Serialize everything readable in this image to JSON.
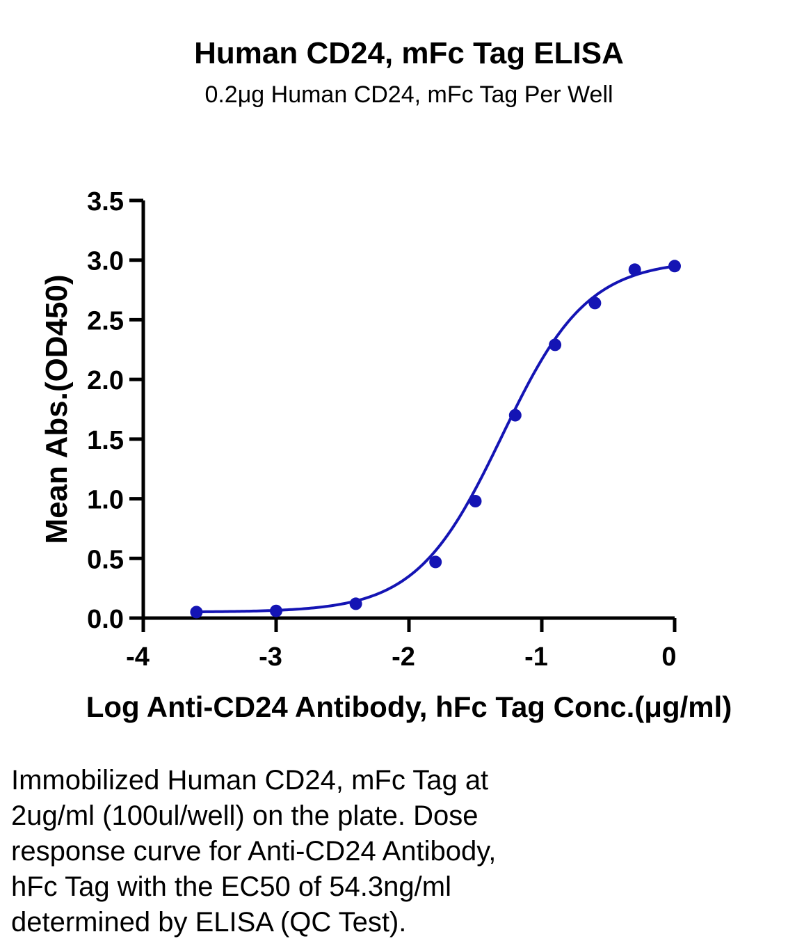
{
  "chart_data": {
    "type": "scatter",
    "title": "Human CD24, mFc Tag ELISA",
    "subtitle": "0.2μg Human CD24, mFc Tag Per Well",
    "xlabel": "Log Anti-CD24 Antibody, hFc Tag Conc.(μg/ml)",
    "ylabel": "Mean Abs.(OD450)",
    "xlim": [
      -4,
      0
    ],
    "ylim": [
      0,
      3.5
    ],
    "xticks": [
      -4,
      -3,
      -2,
      -1,
      0
    ],
    "xtick_labels": [
      "-4",
      "-3",
      "-2",
      "-1",
      "0"
    ],
    "yticks": [
      0,
      0.5,
      1.0,
      1.5,
      2.0,
      2.5,
      3.0,
      3.5
    ],
    "ytick_labels": [
      "0.0",
      "0.5",
      "1.0",
      "1.5",
      "2.0",
      "2.5",
      "3.0",
      "3.5"
    ],
    "grid": false,
    "series": [
      {
        "x": [
          -3.6,
          -3.0,
          -2.4,
          -1.8,
          -1.5,
          -1.2,
          -0.9,
          -0.6,
          -0.3,
          0.0
        ],
        "y": [
          0.05,
          0.06,
          0.12,
          0.47,
          0.98,
          1.7,
          2.29,
          2.64,
          2.92,
          2.95
        ],
        "color": "#1414b4",
        "fit": "four-parameter logistic",
        "fit_range": [
          -3.6,
          0.0
        ]
      }
    ]
  },
  "caption_lines": [
    "Immobilized Human CD24, mFc Tag at",
    "2ug/ml (100ul/well) on the plate. Dose",
    "response curve for Anti-CD24 Antibody,",
    "hFc Tag with the EC50 of 54.3ng/ml",
    "determined by ELISA (QC Test)."
  ]
}
